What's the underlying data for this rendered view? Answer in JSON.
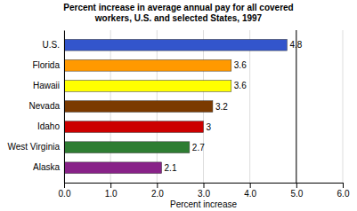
{
  "chart_data": {
    "type": "bar",
    "orientation": "horizontal",
    "title": "Percent increase in average annual pay for all covered\nworkers, U.S. and selected States, 1997",
    "categories": [
      "Alaska",
      "West Virginia",
      "Idaho",
      "Nevada",
      "Hawaii",
      "Florida",
      "U.S."
    ],
    "values": [
      2.1,
      2.7,
      3.0,
      3.2,
      3.6,
      3.6,
      4.8
    ],
    "colors": [
      "#882288",
      "#2e7d32",
      "#cc0000",
      "#7b3a00",
      "#ffff00",
      "#ff9900",
      "#3355cc"
    ],
    "xlabel": "Percent increase",
    "xlim": [
      0,
      6.0
    ],
    "xticks": [
      {
        "value": 0.0,
        "label": "0.0"
      },
      {
        "value": 1.0,
        "label": "1.0"
      },
      {
        "value": 2.0,
        "label": "2.0"
      },
      {
        "value": 3.0,
        "label": "3.0"
      },
      {
        "value": 4.0,
        "label": "4.0"
      },
      {
        "value": 5.0,
        "label": "5.0"
      },
      {
        "value": 6.0,
        "label": "6.0"
      }
    ],
    "grid": true,
    "data_labels": true,
    "vline": 5.0
  }
}
